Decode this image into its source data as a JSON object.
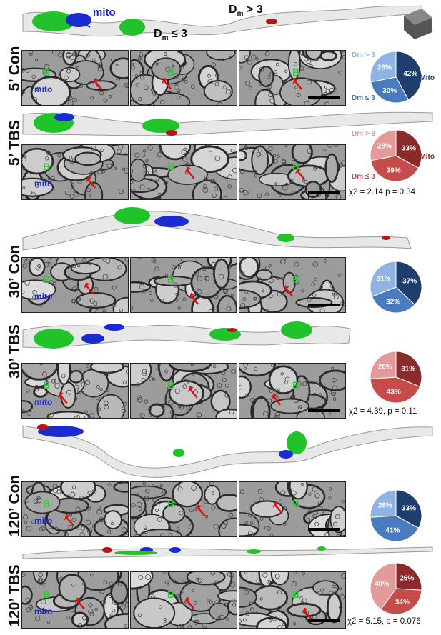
{
  "top_annotations": {
    "mito": "mito",
    "dm_gt": "D",
    "dm_gt_sub": "m",
    "dm_gt_rest": " > 3",
    "dm_le": "D",
    "dm_le_sub": "m",
    "dm_le_rest": " ≤ 3"
  },
  "colors": {
    "con_dark": "#1f3e6e",
    "con_mid": "#4a7bbf",
    "con_light": "#8fb4e3",
    "tbs_dark": "#8b2a2a",
    "tbs_mid": "#c64b4b",
    "tbs_light": "#e29a9a",
    "green": "#22c22a",
    "mito_blue": "#1a2bd1",
    "red_arrow": "#e01010"
  },
  "conditions": [
    {
      "label": "5’ Con",
      "em_labels": [
        "B",
        "B",
        "B"
      ],
      "mito_label": "mito",
      "pie_legend": {
        "gt": "Dm > 3",
        "mito": "Mito",
        "le": "Dm ≤ 3"
      },
      "pie": {
        "mito": 42,
        "le": 30,
        "gt": 28,
        "labels": [
          "42%",
          "30%",
          "28%"
        ]
      },
      "chi": ""
    },
    {
      "label": "5’ TBS",
      "em_labels": [
        "B",
        "B",
        "B"
      ],
      "mito_label": "mito",
      "pie_legend": {
        "gt": "Dm > 3",
        "mito": "Mito",
        "le": "Dm ≤ 3"
      },
      "pie": {
        "mito": 33,
        "le": 39,
        "gt": 28,
        "labels": [
          "33%",
          "39%",
          "28%"
        ]
      },
      "chi": "χ2 = 2.14  p = 0.34"
    },
    {
      "label": "30’ Con",
      "em_labels": [
        "B",
        "B",
        "B"
      ],
      "mito_label": "mito",
      "pie": {
        "mito": 37,
        "le": 32,
        "gt": 31,
        "labels": [
          "37%",
          "32%",
          "31%"
        ]
      },
      "chi": ""
    },
    {
      "label": "30’ TBS",
      "em_labels": [
        "B",
        "B",
        "B"
      ],
      "mito_label": "mito",
      "pie": {
        "mito": 31,
        "le": 43,
        "gt": 26,
        "labels": [
          "31%",
          "43%",
          "26%"
        ]
      },
      "chi": "χ2 = 4.39, p = 0.11"
    },
    {
      "label": "120’ Con",
      "em_labels": [
        "B",
        "B",
        "B"
      ],
      "mito_label": "mito",
      "pie": {
        "mito": 33,
        "le": 41,
        "gt": 26,
        "labels": [
          "33%",
          "41%",
          "26%"
        ]
      },
      "chi": ""
    },
    {
      "label": "120’ TBS",
      "em_labels": [
        "B",
        "B",
        "B"
      ],
      "mito_label": "mito",
      "pie": {
        "mito": 26,
        "le": 34,
        "gt": 40,
        "labels": [
          "26%",
          "34%",
          "40%"
        ]
      },
      "chi": "χ2 = 5.15, p = 0.076"
    }
  ]
}
